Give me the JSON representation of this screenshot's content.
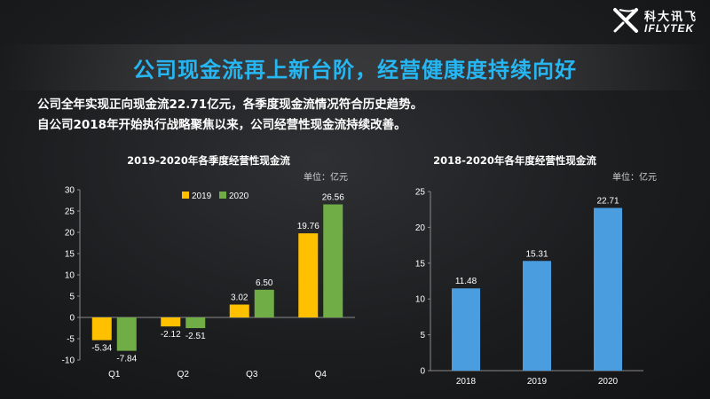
{
  "brand": {
    "logo_cn": "科大讯飞",
    "logo_en": "IFLYTEK",
    "colors": {
      "title": "#26b6f2",
      "logo": "#ffffff"
    }
  },
  "page": {
    "title": "公司现金流再上新台阶，经营健康度持续向好",
    "lines": [
      "公司全年实现正向现金流22.71亿元，各季度现金流情况符合历史趋势。",
      "自公司2018年开始执行战略聚焦以来，公司经营性现金流持续改善。"
    ]
  },
  "chart_data": [
    {
      "type": "bar",
      "title": "2019-2020年各季度经营性现金流",
      "unit": "单位：亿元",
      "categories": [
        "Q1",
        "Q2",
        "Q3",
        "Q4"
      ],
      "series": [
        {
          "name": "2019",
          "color": "#ffc000",
          "values": [
            -5.34,
            -2.12,
            3.02,
            19.76
          ],
          "labels": [
            "-5.34",
            "-2.12",
            "3.02",
            "19.76"
          ]
        },
        {
          "name": "2020",
          "color": "#70ad47",
          "values": [
            -7.84,
            -2.51,
            6.5,
            26.56
          ],
          "labels": [
            "-7.84",
            "-2.51",
            "6.50",
            "26.56"
          ]
        }
      ],
      "yticks": [
        30,
        25,
        20,
        15,
        10,
        5,
        0,
        -5,
        -10
      ],
      "ylim": [
        -10,
        30
      ],
      "grid": false,
      "legend": "top-left"
    },
    {
      "type": "bar",
      "title": "2018-2020年各年度经营性现金流",
      "unit": "单位：亿元",
      "categories": [
        "2018",
        "2019",
        "2020"
      ],
      "series": [
        {
          "color": "#4a9ee0",
          "values": [
            11.48,
            15.31,
            22.71
          ],
          "labels": [
            "11.48",
            "15.31",
            "22.71"
          ]
        }
      ],
      "yticks": [
        25,
        20,
        15,
        10,
        5,
        0
      ],
      "ylim": [
        0,
        25
      ],
      "grid": false
    }
  ]
}
